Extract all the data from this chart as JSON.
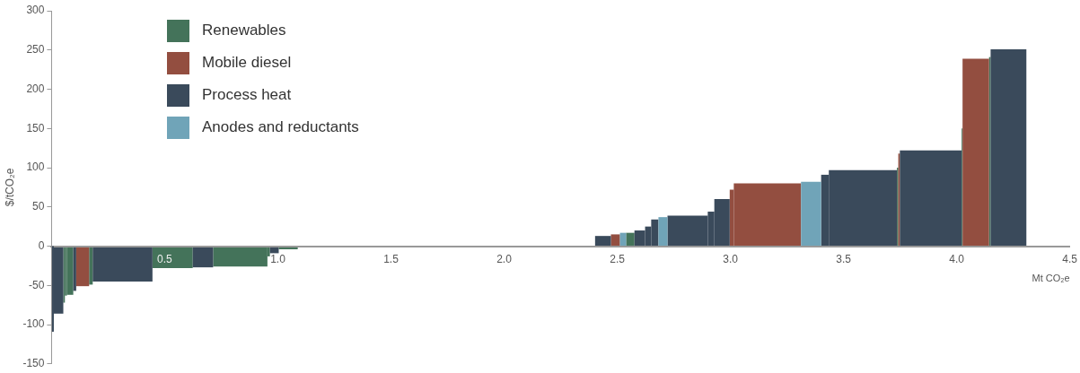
{
  "chart_data": {
    "type": "histogram",
    "xlabel": "Mt CO₂e",
    "ylabel": "$/tCO₂e",
    "legend": "top left",
    "xlim": [
      0,
      4.5
    ],
    "xticks": [
      0.5,
      {
        "value": 1,
        "label": "1.0"
      },
      1.5,
      {
        "value": 2,
        "label": "2.0"
      },
      2.5,
      {
        "value": 3,
        "label": "3.0"
      },
      3.5,
      {
        "value": 4,
        "label": "4.0"
      },
      4.5
    ],
    "ylim": [
      -150,
      300
    ],
    "yticks": [
      -150,
      -100,
      -50,
      0,
      50,
      100,
      150,
      200,
      250,
      300
    ],
    "bins": [
      0,
      0.008,
      0.052,
      0.059,
      0.068,
      0.096,
      0.109,
      0.166,
      0.182,
      0.446,
      0.624,
      0.714,
      0.954,
      0.965,
      1.004,
      1.088,
      2.1,
      2.402,
      2.472,
      2.512,
      2.539,
      2.576,
      2.623,
      2.65,
      2.682,
      2.722,
      2.9,
      2.929,
      2.997,
      3.015,
      3.312,
      3.401,
      3.435,
      3.736,
      3.742,
      3.749,
      4.022,
      4.026,
      4.143,
      4.15,
      4.308
    ],
    "series": [
      {
        "name": "Renewables",
        "color": "#44735a",
        "values": [
          null,
          null,
          -72,
          -63,
          -62,
          null,
          null,
          -49,
          null,
          -28,
          null,
          -26,
          -13,
          null,
          -4,
          null,
          null,
          null,
          null,
          null,
          17,
          null,
          null,
          null,
          null,
          null,
          null,
          null,
          null,
          null,
          null,
          null,
          null,
          100,
          null,
          null,
          150,
          null,
          241,
          null
        ]
      },
      {
        "name": "Mobile diesel",
        "color": "#934e40",
        "values": [
          null,
          null,
          null,
          null,
          null,
          null,
          -51,
          null,
          null,
          null,
          null,
          null,
          null,
          null,
          null,
          null,
          null,
          null,
          15,
          null,
          null,
          null,
          null,
          null,
          null,
          null,
          null,
          null,
          72,
          80,
          null,
          null,
          null,
          null,
          118,
          null,
          null,
          239,
          null,
          null
        ]
      },
      {
        "name": "Process heat",
        "color": "#3a4a5b",
        "values": [
          -109,
          -86,
          null,
          null,
          null,
          -57,
          null,
          null,
          -45,
          null,
          -27,
          null,
          null,
          -9,
          null,
          -1,
          null,
          13,
          null,
          null,
          null,
          20,
          25,
          34,
          null,
          39,
          44,
          60,
          null,
          null,
          null,
          91,
          97,
          null,
          null,
          122,
          null,
          null,
          null,
          251
        ]
      },
      {
        "name": "Anodes and reductants",
        "color": "#70a4b8",
        "values": [
          null,
          null,
          null,
          null,
          null,
          null,
          null,
          null,
          null,
          null,
          null,
          null,
          null,
          null,
          null,
          null,
          null,
          null,
          null,
          17,
          null,
          null,
          null,
          null,
          37,
          null,
          null,
          null,
          null,
          null,
          82,
          null,
          null,
          null,
          null,
          null,
          null,
          null,
          null,
          null
        ]
      }
    ]
  }
}
